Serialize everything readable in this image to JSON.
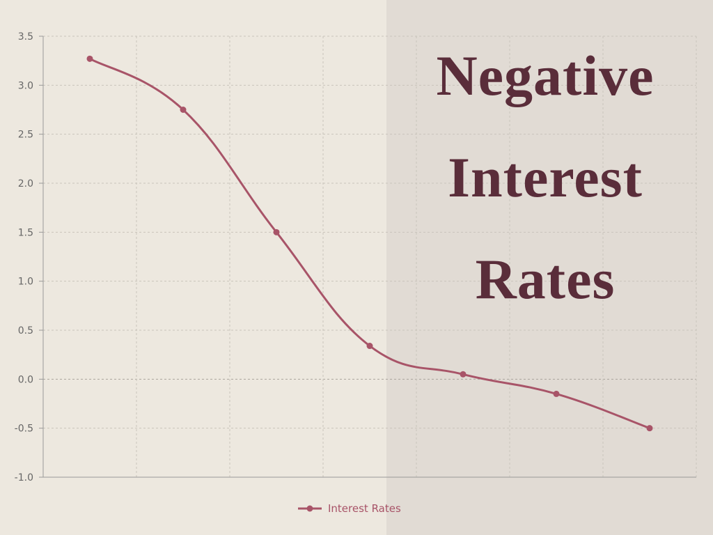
{
  "title_lines": [
    "Negative",
    "Interest",
    "Rates"
  ],
  "chart_data": {
    "type": "line",
    "categories": [
      "",
      "",
      "",
      "",
      "",
      "",
      ""
    ],
    "series": [
      {
        "name": "Interest Rates",
        "values": [
          3.27,
          2.75,
          1.5,
          0.34,
          0.05,
          -0.15,
          -0.5
        ]
      }
    ],
    "ylim": [
      -1.0,
      3.5
    ],
    "yticks": [
      "3.5",
      "3.0",
      "2.5",
      "2.0",
      "1.5",
      "1.0",
      "0.5",
      "0.0",
      "-0.5",
      "-1.0"
    ],
    "grid": true,
    "legend_position": "bottom",
    "colors": {
      "line": "#a85468",
      "title": "#5a2d3a",
      "grid": "#c9c4bb",
      "axis": "#999999",
      "legend_text": "#a85468"
    }
  }
}
